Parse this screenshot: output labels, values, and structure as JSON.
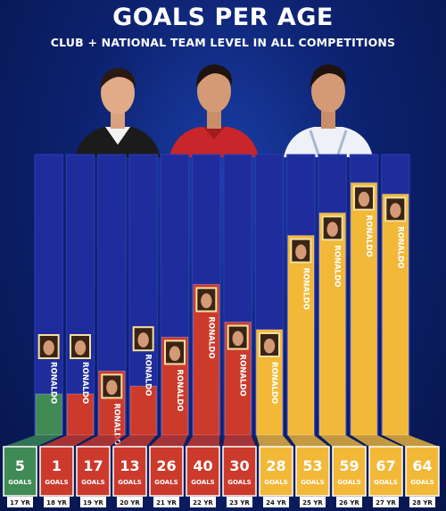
{
  "title": "GOALS PER AGE",
  "subtitle": "CLUB + NATIONAL TEAM LEVEL IN ALL COMPETITIONS",
  "colors": {
    "background": "#0d2270",
    "stripe": "#1f2c9c",
    "green": "#3f8a55",
    "red": "#cc3a2c",
    "yellow": "#f2b838",
    "goals_text": "#ffffff",
    "age_label_bg": "#ffffff",
    "age_label_text": "#111111"
  },
  "portraits": [
    {
      "icon": "player-portrait-icon",
      "jersey": "black-white"
    },
    {
      "icon": "player-portrait-icon",
      "jersey": "red"
    },
    {
      "icon": "player-portrait-icon",
      "jersey": "white"
    }
  ],
  "chart_data": {
    "type": "bar",
    "title": "GOALS PER AGE",
    "subtitle": "CLUB + NATIONAL TEAM LEVEL IN ALL COMPETITIONS",
    "categories": [
      "17 YR",
      "18 YR",
      "19 YR",
      "20 YR",
      "21 YR",
      "22 YR",
      "23 YR",
      "24 YR",
      "25 YR",
      "26 YR",
      "27 YR",
      "28 YR"
    ],
    "values": [
      5,
      1,
      17,
      13,
      26,
      40,
      30,
      28,
      53,
      59,
      67,
      64
    ],
    "value_unit": "GOALS",
    "bar_label": "RONALDO",
    "bar_colors": [
      "green",
      "red",
      "red",
      "red",
      "red",
      "red",
      "red",
      "yellow",
      "yellow",
      "yellow",
      "yellow",
      "yellow"
    ],
    "ylim": [
      0,
      70
    ],
    "xlabel": "",
    "ylabel": "",
    "grid": false,
    "legend": "none"
  }
}
